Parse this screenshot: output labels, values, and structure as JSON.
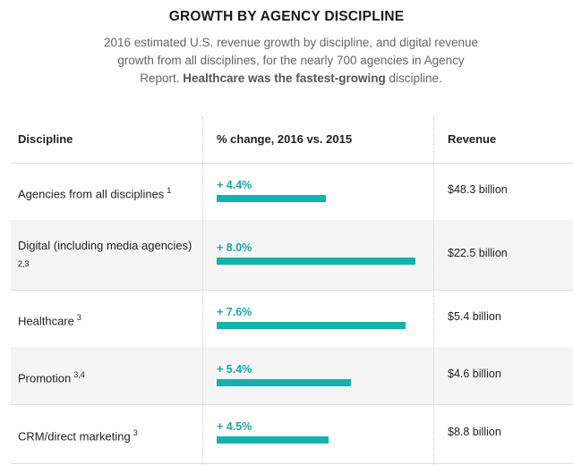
{
  "header": {
    "title": "GROWTH BY AGENCY DISCIPLINE",
    "subtitle_before": "2016 estimated U.S. revenue growth by discipline, and digital revenue growth from all disciplines, for the nearly 700 agencies in Agency Report. ",
    "subtitle_bold": "Healthcare was the fastest-growing",
    "subtitle_after": " discipline."
  },
  "chart_data": {
    "type": "table",
    "columns": [
      "Discipline",
      "% change, 2016 vs. 2015",
      "Revenue"
    ],
    "rows": [
      {
        "discipline": "Agencies from all disciplines",
        "footnote": "1",
        "pct_label": "+ 4.4%",
        "pct": 4.4,
        "revenue": "$48.3 billion"
      },
      {
        "discipline": "Digital (including media agencies)",
        "footnote": "2,3",
        "pct_label": "+ 8.0%",
        "pct": 8.0,
        "revenue": "$22.5 billion"
      },
      {
        "discipline": "Healthcare",
        "footnote": "3",
        "pct_label": "+ 7.6%",
        "pct": 7.6,
        "revenue": "$5.4 billion"
      },
      {
        "discipline": "Promotion",
        "footnote": "3,4",
        "pct_label": "+ 5.4%",
        "pct": 5.4,
        "revenue": "$4.6 billion"
      },
      {
        "discipline": "CRM/direct marketing",
        "footnote": "3",
        "pct_label": "+ 4.5%",
        "pct": 4.5,
        "revenue": "$8.8 billion"
      }
    ],
    "bar_color": "#13b2ad",
    "pct_color": "#1aa8a5",
    "xlim": [
      0,
      8.0
    ]
  }
}
